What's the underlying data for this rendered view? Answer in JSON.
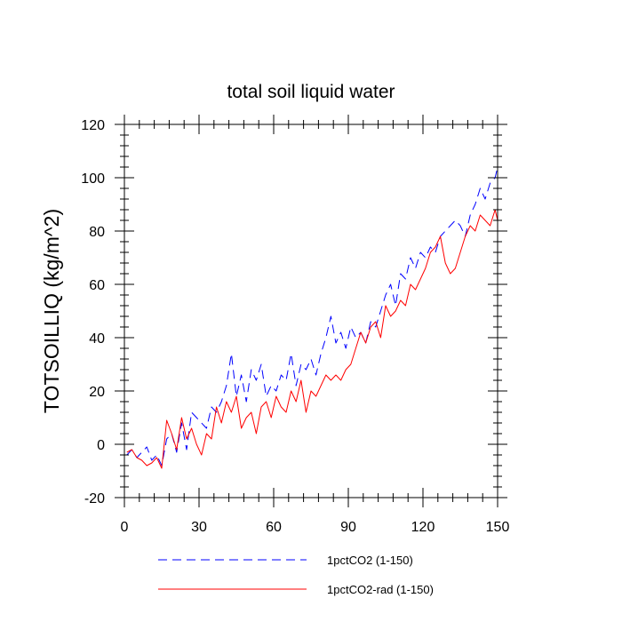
{
  "chart_data": {
    "type": "line",
    "title": "total soil liquid water",
    "xlabel": "",
    "ylabel": "TOTSOILLIQ  (kg/m^2)",
    "xlim": [
      0,
      150
    ],
    "ylim": [
      -20,
      120
    ],
    "xticks": [
      0,
      30,
      60,
      90,
      120,
      150
    ],
    "xtick_labels": [
      "0",
      "30",
      "60",
      "90",
      "120",
      "150"
    ],
    "yticks": [
      -20,
      0,
      20,
      40,
      60,
      80,
      100,
      120
    ],
    "ytick_labels": [
      "-20",
      "0",
      "20",
      "40",
      "60",
      "80",
      "100",
      "120"
    ],
    "grid": false,
    "legend_position": "bottom",
    "series": [
      {
        "name": "1pctCO2 (1-150)",
        "color": "#0000ff",
        "style": "dashed",
        "x": [
          1,
          3,
          5,
          7,
          9,
          11,
          13,
          15,
          17,
          19,
          21,
          23,
          25,
          27,
          29,
          31,
          33,
          35,
          37,
          39,
          41,
          43,
          45,
          47,
          49,
          51,
          53,
          55,
          57,
          59,
          61,
          63,
          65,
          67,
          69,
          71,
          73,
          75,
          77,
          79,
          81,
          83,
          85,
          87,
          89,
          91,
          93,
          95,
          97,
          99,
          101,
          103,
          105,
          107,
          109,
          111,
          113,
          115,
          117,
          119,
          121,
          123,
          125,
          127,
          129,
          131,
          133,
          135,
          137,
          139,
          141,
          143,
          145,
          147,
          149,
          150
        ],
        "y": [
          -4,
          -2,
          -5,
          -3,
          -1,
          -6,
          -4,
          -8,
          2,
          4,
          -3,
          8,
          -2,
          12,
          10,
          8,
          6,
          14,
          12,
          16,
          22,
          34,
          18,
          26,
          16,
          28,
          24,
          30,
          18,
          22,
          20,
          26,
          24,
          34,
          22,
          30,
          28,
          32,
          26,
          34,
          40,
          48,
          38,
          42,
          36,
          44,
          40,
          42,
          38,
          46,
          44,
          50,
          56,
          60,
          52,
          64,
          62,
          70,
          66,
          72,
          70,
          74,
          72,
          78,
          80,
          82,
          84,
          82,
          78,
          86,
          90,
          96,
          92,
          98,
          100,
          104
        ]
      },
      {
        "name": "1pctCO2-rad (1-150)",
        "color": "#ff0000",
        "style": "solid",
        "x": [
          1,
          3,
          5,
          7,
          9,
          11,
          13,
          15,
          17,
          19,
          21,
          23,
          25,
          27,
          29,
          31,
          33,
          35,
          37,
          39,
          41,
          43,
          45,
          47,
          49,
          51,
          53,
          55,
          57,
          59,
          61,
          63,
          65,
          67,
          69,
          71,
          73,
          75,
          77,
          79,
          81,
          83,
          85,
          87,
          89,
          91,
          93,
          95,
          97,
          99,
          101,
          103,
          105,
          107,
          109,
          111,
          113,
          115,
          117,
          119,
          121,
          123,
          125,
          127,
          129,
          131,
          133,
          135,
          137,
          139,
          141,
          143,
          145,
          147,
          149,
          150
        ],
        "y": [
          -3,
          -2,
          -5,
          -6,
          -8,
          -7,
          -5,
          -9,
          9,
          4,
          -2,
          10,
          2,
          6,
          0,
          -4,
          4,
          2,
          14,
          8,
          16,
          12,
          18,
          6,
          10,
          12,
          4,
          14,
          16,
          10,
          18,
          14,
          12,
          20,
          16,
          24,
          12,
          20,
          18,
          22,
          26,
          24,
          26,
          24,
          28,
          30,
          36,
          42,
          38,
          44,
          46,
          40,
          52,
          48,
          50,
          54,
          52,
          60,
          58,
          62,
          66,
          72,
          74,
          78,
          68,
          64,
          66,
          72,
          78,
          82,
          80,
          86,
          84,
          82,
          88,
          84
        ]
      }
    ]
  }
}
